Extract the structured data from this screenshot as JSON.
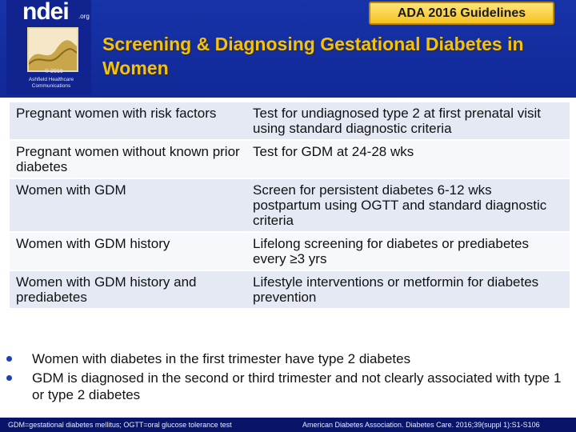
{
  "logo": {
    "brand": "ndei",
    "domain": ".org",
    "copyright": "© 2016",
    "owner": "Ashfield Healthcare Communications"
  },
  "badge": "ADA 2016 Guidelines",
  "title": "Screening & Diagnosing Gestational Diabetes in Women",
  "rows": [
    {
      "population": "Pregnant women with risk factors",
      "recommendation": "Test for undiagnosed  type 2 at first prenatal visit using standard diagnostic criteria"
    },
    {
      "population": "Pregnant women without known prior diabetes",
      "recommendation": "Test for GDM at 24-28 wks"
    },
    {
      "population": "Women with GDM",
      "recommendation": "Screen for persistent diabetes 6-12 wks postpartum using OGTT and standard diagnostic criteria"
    },
    {
      "population": "Women with GDM history",
      "recommendation": "Lifelong screening for diabetes or prediabetes every ≥3 yrs"
    },
    {
      "population": "Women with GDM history and prediabetes",
      "recommendation": "Lifestyle interventions or metformin for diabetes prevention"
    }
  ],
  "bullets": [
    "Women with diabetes in the first trimester have type 2 diabetes",
    "GDM is diagnosed in the second or third trimester and not clearly associated with type 1 or type 2 diabetes"
  ],
  "footer": {
    "abbreviations": "GDM=gestational diabetes mellitus; OGTT=oral glucose tolerance test",
    "citation": "American Diabetes Association. Diabetes Care. 2016;39(suppl 1):S1-S106"
  }
}
